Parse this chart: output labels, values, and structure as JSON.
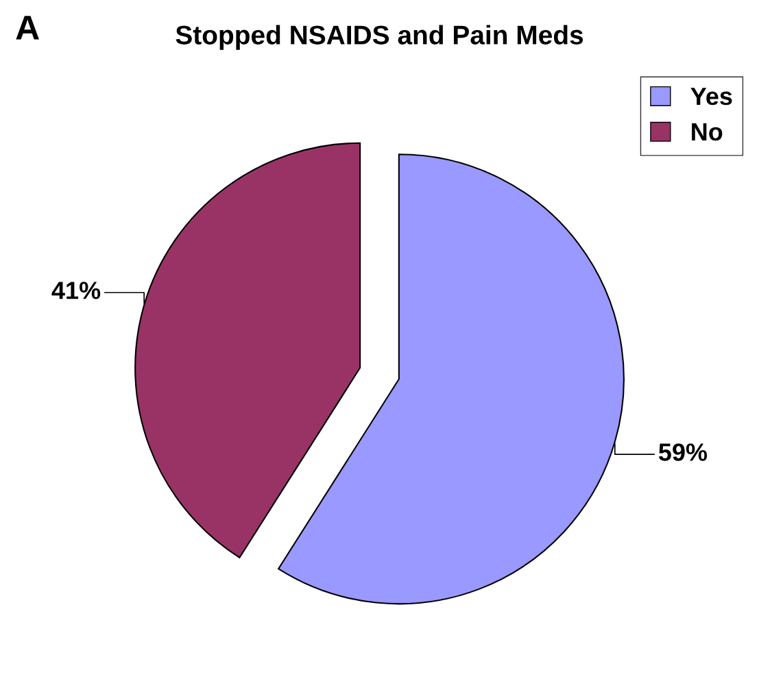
{
  "chart_data": {
    "type": "pie",
    "title": "Stopped NSAIDS and Pain Meds",
    "annotations": [
      "A"
    ],
    "categories": [
      "Yes",
      "No"
    ],
    "values": [
      59,
      41
    ],
    "colors": [
      "#9999ff",
      "#993366"
    ],
    "data_labels": true,
    "value_labels": [
      "59%",
      "41%"
    ],
    "legend": "top right"
  }
}
